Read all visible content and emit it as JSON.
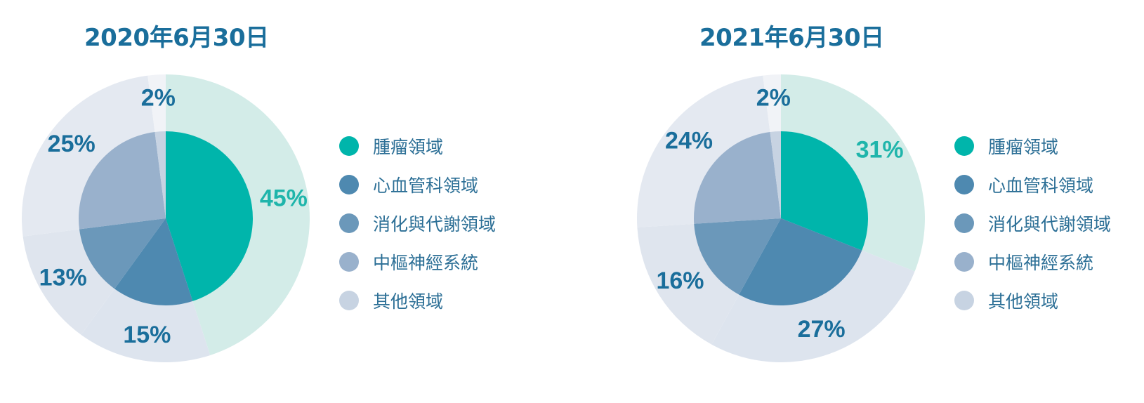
{
  "chart_data": [
    {
      "type": "pie",
      "title": "2020年6月30日",
      "slices": [
        {
          "name": "腫瘤領域",
          "value": 45,
          "label": "45%"
        },
        {
          "name": "心血管科領域",
          "value": 15,
          "label": "15%"
        },
        {
          "name": "消化與代謝領域",
          "value": 13,
          "label": "13%"
        },
        {
          "name": "中樞神經系統",
          "value": 25,
          "label": "25%"
        },
        {
          "name": "其他領域",
          "value": 2,
          "label": "2%"
        }
      ],
      "legend": [
        "腫瘤領域",
        "心血管科領域",
        "消化與代謝領域",
        "中樞神經系統",
        "其他領域"
      ],
      "legend_position": "right"
    },
    {
      "type": "pie",
      "title": "2021年6月30日",
      "slices": [
        {
          "name": "腫瘤領域",
          "value": 31,
          "label": "31%"
        },
        {
          "name": "心血管科領域",
          "value": 27,
          "label": "27%"
        },
        {
          "name": "消化與代謝領域",
          "value": 16,
          "label": "16%"
        },
        {
          "name": "中樞神經系統",
          "value": 24,
          "label": "24%"
        },
        {
          "name": "其他領域",
          "value": 2,
          "label": "2%"
        }
      ],
      "legend": [
        "腫瘤領域",
        "心血管科領域",
        "消化與代謝領域",
        "中樞神經系統",
        "其他領域"
      ],
      "legend_position": "right"
    }
  ],
  "colors": {
    "inner": [
      "#00b5ab",
      "#4e89b0",
      "#6b98ba",
      "#99b1cc",
      "#c7d3e2"
    ],
    "outer": [
      "#d3ece8",
      "#dde4ee",
      "#dfe5ee",
      "#e4e9f1",
      "#f1f3f7"
    ],
    "label": [
      "#1fb5ab",
      "#1a6e9b",
      "#1a6e9b",
      "#1a6e9b",
      "#1a6e9b"
    ],
    "title": "#1a6e9b"
  }
}
